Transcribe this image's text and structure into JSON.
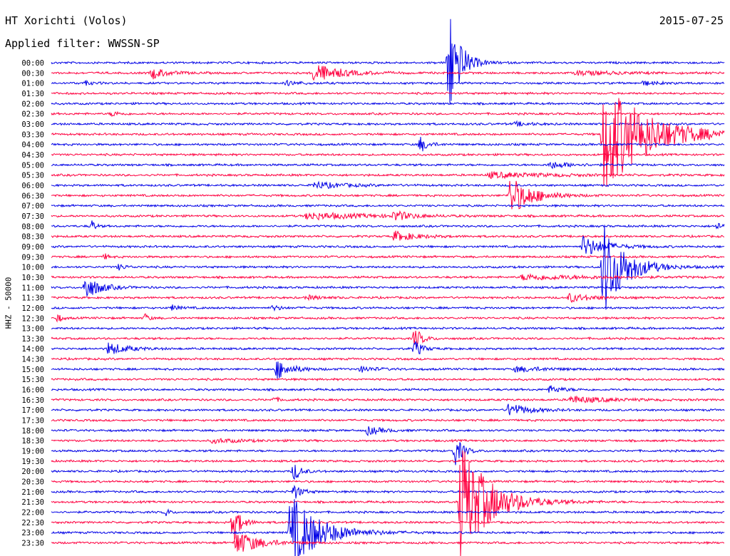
{
  "header": {
    "station": "HT Xorichti (Volos)",
    "filter": "Applied filter: WWSSN-SP",
    "date": "2015-07-25"
  },
  "chart_data": {
    "type": "line",
    "title": "HT Xorichti (Volos)",
    "subtitle": "Applied filter: WWSSN-SP",
    "ylabel": "HHZ - 50000",
    "xlabel": "",
    "grid": false,
    "legend": "none",
    "colors": {
      "even": "#0000e6",
      "odd": "#ff0040"
    },
    "row_labels": [
      "00:00",
      "00:30",
      "01:00",
      "01:30",
      "02:00",
      "02:30",
      "03:00",
      "03:30",
      "04:00",
      "04:30",
      "05:00",
      "05:30",
      "06:00",
      "06:30",
      "07:00",
      "07:30",
      "08:00",
      "08:30",
      "09:00",
      "09:30",
      "10:00",
      "10:30",
      "11:00",
      "11:30",
      "12:00",
      "12:30",
      "13:00",
      "13:30",
      "14:00",
      "14:30",
      "15:00",
      "15:30",
      "16:00",
      "16:30",
      "17:00",
      "17:30",
      "18:00",
      "18:30",
      "19:00",
      "19:30",
      "20:00",
      "20:30",
      "21:00",
      "21:30",
      "22:00",
      "22:30",
      "23:00",
      "23:30"
    ],
    "events": [
      {
        "row": 0,
        "pos": 0.59,
        "amp": 88,
        "dur": 0.015
      },
      {
        "row": 1,
        "pos": 0.15,
        "amp": 8,
        "dur": 0.02
      },
      {
        "row": 1,
        "pos": 0.39,
        "amp": 14,
        "dur": 0.035
      },
      {
        "row": 1,
        "pos": 0.78,
        "amp": 3,
        "dur": 0.06
      },
      {
        "row": 2,
        "pos": 0.05,
        "amp": 3,
        "dur": 0.01
      },
      {
        "row": 2,
        "pos": 0.35,
        "amp": 3,
        "dur": 0.02
      },
      {
        "row": 2,
        "pos": 0.88,
        "amp": 3,
        "dur": 0.02
      },
      {
        "row": 5,
        "pos": 0.09,
        "amp": 4,
        "dur": 0.01
      },
      {
        "row": 6,
        "pos": 0.69,
        "amp": 3,
        "dur": 0.02
      },
      {
        "row": 7,
        "pos": 0.82,
        "amp": 85,
        "dur": 0.06
      },
      {
        "row": 8,
        "pos": 0.548,
        "amp": 12,
        "dur": 0.01
      },
      {
        "row": 10,
        "pos": 0.74,
        "amp": 5,
        "dur": 0.03
      },
      {
        "row": 11,
        "pos": 0.65,
        "amp": 4,
        "dur": 0.08
      },
      {
        "row": 12,
        "pos": 0.39,
        "amp": 5,
        "dur": 0.04
      },
      {
        "row": 13,
        "pos": 0.682,
        "amp": 28,
        "dur": 0.03
      },
      {
        "row": 15,
        "pos": 0.38,
        "amp": 5,
        "dur": 0.08
      },
      {
        "row": 15,
        "pos": 0.51,
        "amp": 7,
        "dur": 0.02
      },
      {
        "row": 16,
        "pos": 0.06,
        "amp": 9,
        "dur": 0.005
      },
      {
        "row": 16,
        "pos": 0.99,
        "amp": 6,
        "dur": 0.01
      },
      {
        "row": 17,
        "pos": 0.51,
        "amp": 7,
        "dur": 0.03
      },
      {
        "row": 18,
        "pos": 0.79,
        "amp": 15,
        "dur": 0.03
      },
      {
        "row": 19,
        "pos": 0.08,
        "amp": 4,
        "dur": 0.005
      },
      {
        "row": 20,
        "pos": 0.82,
        "amp": 70,
        "dur": 0.03
      },
      {
        "row": 20,
        "pos": 0.1,
        "amp": 4,
        "dur": 0.01
      },
      {
        "row": 21,
        "pos": 0.7,
        "amp": 4,
        "dur": 0.09
      },
      {
        "row": 22,
        "pos": 0.05,
        "amp": 18,
        "dur": 0.02
      },
      {
        "row": 23,
        "pos": 0.77,
        "amp": 6,
        "dur": 0.03
      },
      {
        "row": 23,
        "pos": 0.38,
        "amp": 3,
        "dur": 0.02
      },
      {
        "row": 24,
        "pos": 0.18,
        "amp": 4,
        "dur": 0.01
      },
      {
        "row": 24,
        "pos": 0.33,
        "amp": 4,
        "dur": 0.01
      },
      {
        "row": 25,
        "pos": 0.01,
        "amp": 7,
        "dur": 0.005
      },
      {
        "row": 25,
        "pos": 0.14,
        "amp": 7,
        "dur": 0.005
      },
      {
        "row": 27,
        "pos": 0.54,
        "amp": 16,
        "dur": 0.01
      },
      {
        "row": 28,
        "pos": 0.085,
        "amp": 9,
        "dur": 0.025
      },
      {
        "row": 28,
        "pos": 0.54,
        "amp": 12,
        "dur": 0.01
      },
      {
        "row": 30,
        "pos": 0.335,
        "amp": 14,
        "dur": 0.02
      },
      {
        "row": 30,
        "pos": 0.46,
        "amp": 4,
        "dur": 0.02
      },
      {
        "row": 30,
        "pos": 0.69,
        "amp": 4,
        "dur": 0.04
      },
      {
        "row": 32,
        "pos": 0.74,
        "amp": 5,
        "dur": 0.02
      },
      {
        "row": 33,
        "pos": 0.77,
        "amp": 5,
        "dur": 0.05
      },
      {
        "row": 33,
        "pos": 0.33,
        "amp": 3,
        "dur": 0.01
      },
      {
        "row": 34,
        "pos": 0.68,
        "amp": 10,
        "dur": 0.025
      },
      {
        "row": 36,
        "pos": 0.47,
        "amp": 6,
        "dur": 0.02
      },
      {
        "row": 37,
        "pos": 0.24,
        "amp": 3,
        "dur": 0.04
      },
      {
        "row": 38,
        "pos": 0.6,
        "amp": 22,
        "dur": 0.01
      },
      {
        "row": 40,
        "pos": 0.36,
        "amp": 14,
        "dur": 0.01
      },
      {
        "row": 42,
        "pos": 0.36,
        "amp": 12,
        "dur": 0.01
      },
      {
        "row": 43,
        "pos": 0.608,
        "amp": 85,
        "dur": 0.04
      },
      {
        "row": 44,
        "pos": 0.17,
        "amp": 6,
        "dur": 0.005
      },
      {
        "row": 45,
        "pos": 0.27,
        "amp": 30,
        "dur": 0.01
      },
      {
        "row": 46,
        "pos": 0.355,
        "amp": 55,
        "dur": 0.04
      },
      {
        "row": 47,
        "pos": 0.275,
        "amp": 18,
        "dur": 0.03
      }
    ]
  }
}
